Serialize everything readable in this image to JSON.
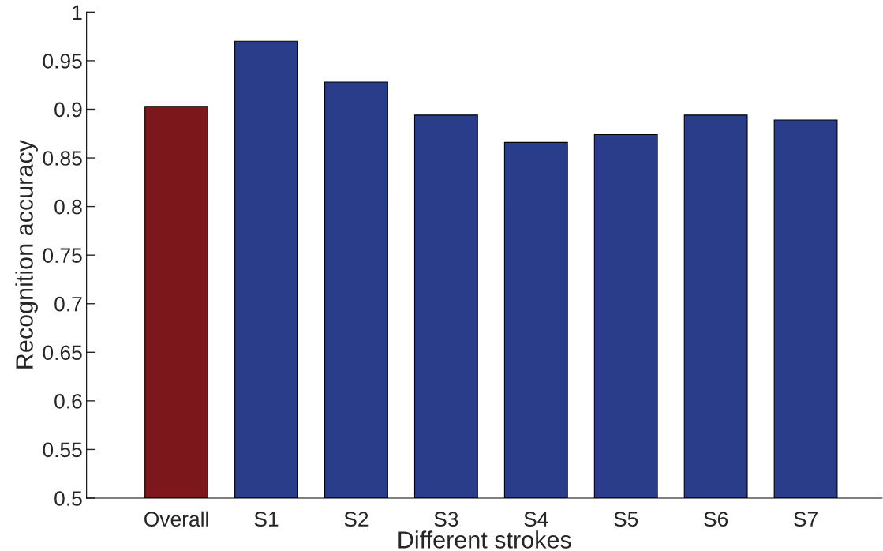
{
  "chart_data": {
    "type": "bar",
    "xlabel": "Different strokes",
    "ylabel": "Recognition accuracy",
    "categories": [
      "Overall",
      "S1",
      "S2",
      "S3",
      "S4",
      "S5",
      "S6",
      "S7"
    ],
    "values": [
      0.903,
      0.97,
      0.928,
      0.894,
      0.866,
      0.874,
      0.894,
      0.889
    ],
    "colors": [
      "#7c171b",
      "#2a3d8b",
      "#2a3d8b",
      "#2a3d8b",
      "#2a3d8b",
      "#2a3d8b",
      "#2a3d8b",
      "#2a3d8b"
    ],
    "ylim": [
      0.5,
      1
    ],
    "yticks": [
      0.5,
      0.55,
      0.6,
      0.65,
      0.7,
      0.75,
      0.8,
      0.85,
      0.9,
      0.95,
      1
    ],
    "grid": false
  }
}
